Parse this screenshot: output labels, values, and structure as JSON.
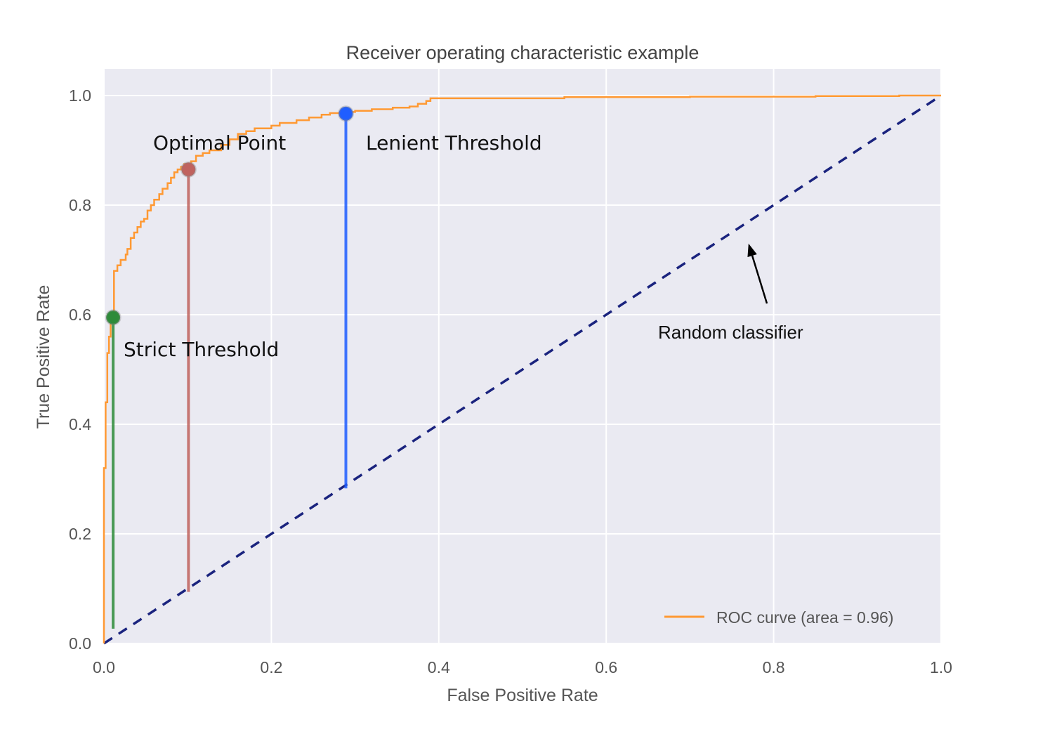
{
  "chart_data": {
    "type": "line",
    "title": "Receiver operating characteristic example",
    "xlabel": "False Positive Rate",
    "ylabel": "True Positive Rate",
    "xlim": [
      0.0,
      1.0
    ],
    "ylim": [
      0.0,
      1.05
    ],
    "x_ticks": [
      "0.0",
      "0.2",
      "0.4",
      "0.6",
      "0.8",
      "1.0"
    ],
    "y_ticks": [
      "0.0",
      "0.2",
      "0.4",
      "0.6",
      "0.8",
      "1.0"
    ],
    "grid": true,
    "legend_position": "bottom-right",
    "series": [
      {
        "name": "ROC curve (area = 0.96)",
        "color": "#ff9933",
        "style": "solid",
        "x": [
          0.0,
          0.0,
          0.002,
          0.002,
          0.004,
          0.004,
          0.006,
          0.006,
          0.008,
          0.008,
          0.01,
          0.01,
          0.012,
          0.012,
          0.016,
          0.016,
          0.02,
          0.02,
          0.026,
          0.026,
          0.028,
          0.028,
          0.032,
          0.032,
          0.036,
          0.036,
          0.04,
          0.04,
          0.044,
          0.044,
          0.048,
          0.048,
          0.052,
          0.052,
          0.056,
          0.056,
          0.06,
          0.06,
          0.066,
          0.066,
          0.07,
          0.07,
          0.076,
          0.076,
          0.08,
          0.08,
          0.084,
          0.084,
          0.088,
          0.088,
          0.092,
          0.092,
          0.096,
          0.096,
          0.1,
          0.104,
          0.104,
          0.11,
          0.11,
          0.118,
          0.118,
          0.126,
          0.126,
          0.14,
          0.14,
          0.15,
          0.15,
          0.16,
          0.16,
          0.17,
          0.17,
          0.18,
          0.18,
          0.2,
          0.2,
          0.21,
          0.21,
          0.23,
          0.23,
          0.245,
          0.245,
          0.26,
          0.26,
          0.27,
          0.27,
          0.286,
          0.286,
          0.3,
          0.3,
          0.32,
          0.32,
          0.345,
          0.345,
          0.365,
          0.365,
          0.375,
          0.375,
          0.385,
          0.385,
          0.39,
          0.39,
          0.4,
          0.55,
          0.55,
          0.7,
          0.7,
          0.85,
          0.85,
          0.95,
          0.95,
          1.0
        ],
        "y": [
          0.0,
          0.32,
          0.32,
          0.44,
          0.44,
          0.53,
          0.53,
          0.56,
          0.56,
          0.59,
          0.59,
          0.6,
          0.6,
          0.68,
          0.68,
          0.69,
          0.69,
          0.7,
          0.7,
          0.71,
          0.71,
          0.72,
          0.72,
          0.74,
          0.74,
          0.75,
          0.75,
          0.76,
          0.76,
          0.77,
          0.77,
          0.775,
          0.775,
          0.79,
          0.79,
          0.8,
          0.8,
          0.81,
          0.81,
          0.82,
          0.82,
          0.83,
          0.83,
          0.84,
          0.84,
          0.85,
          0.85,
          0.86,
          0.86,
          0.865,
          0.865,
          0.87,
          0.87,
          0.875,
          0.875,
          0.875,
          0.88,
          0.88,
          0.89,
          0.89,
          0.895,
          0.895,
          0.9,
          0.9,
          0.91,
          0.91,
          0.92,
          0.92,
          0.93,
          0.93,
          0.935,
          0.935,
          0.94,
          0.94,
          0.945,
          0.945,
          0.95,
          0.95,
          0.955,
          0.955,
          0.96,
          0.96,
          0.965,
          0.965,
          0.968,
          0.968,
          0.97,
          0.97,
          0.972,
          0.972,
          0.975,
          0.975,
          0.978,
          0.978,
          0.98,
          0.98,
          0.985,
          0.985,
          0.99,
          0.99,
          0.995,
          0.995,
          0.995,
          0.997,
          0.997,
          0.998,
          0.998,
          0.999,
          0.999,
          1.0,
          1.0
        ]
      },
      {
        "name": "",
        "color": "#1a237e",
        "style": "dashed",
        "x": [
          0.0,
          1.0
        ],
        "y": [
          0.0,
          1.0
        ]
      }
    ],
    "points": [
      {
        "label": "Strict Threshold",
        "x": 0.011,
        "y": 0.595,
        "color": "#2e8b3a"
      },
      {
        "label": "Optimal Point",
        "x": 0.101,
        "y": 0.865,
        "color": "#c0625e"
      },
      {
        "label": "Lenient Threshold",
        "x": 0.289,
        "y": 0.967,
        "color": "#1f5eff"
      }
    ],
    "annotations": [
      {
        "text": "Random classifier",
        "arrow_to": [
          0.77,
          0.74
        ]
      }
    ]
  }
}
